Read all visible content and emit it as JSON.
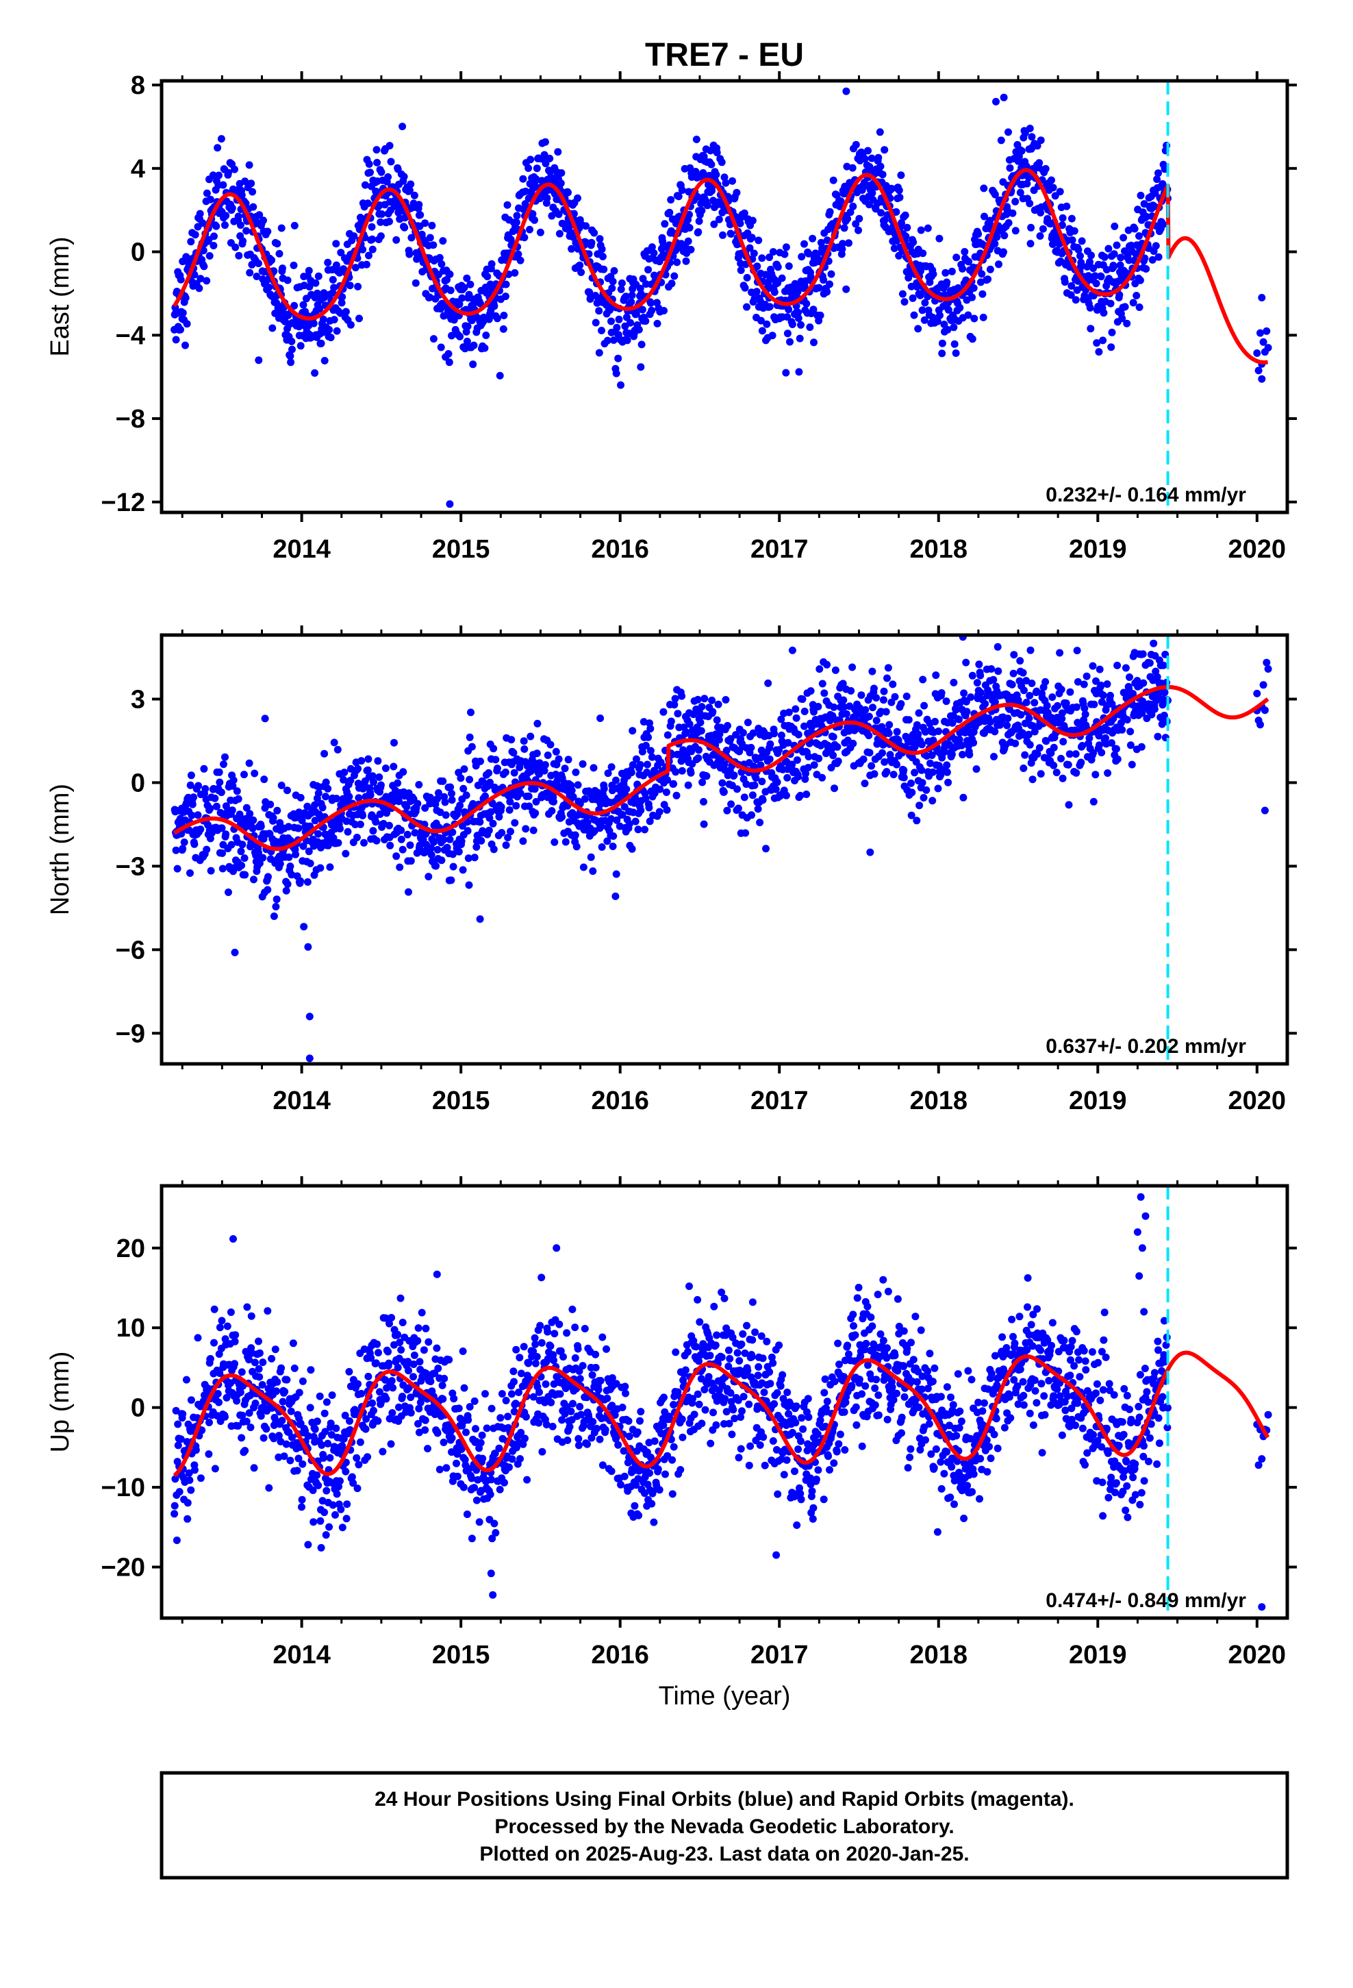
{
  "title": "TRE7 - EU",
  "xlabel": "Time (year)",
  "footer": {
    "line1": "24 Hour Positions Using Final Orbits (blue) and Rapid Orbits (magenta).",
    "line2": "Processed by the Nevada Geodetic Laboratory.",
    "line3": "Plotted on 2025-Aug-23. Last data on 2020-Jan-25."
  },
  "colors": {
    "data_points": "#0000ff",
    "model_fit": "#ff0000",
    "equipment_change": "#00e5ff",
    "frame": "#000000"
  },
  "chart_data": [
    {
      "type": "scatter",
      "panel": "east",
      "ylabel": "East (mm)",
      "xlim": [
        2013.12,
        2020.19
      ],
      "ylim": [
        -12.5,
        8.2
      ],
      "xticks": [
        2014,
        2015,
        2016,
        2017,
        2018,
        2019,
        2020
      ],
      "yticks": [
        8,
        4,
        0,
        -4,
        -8,
        -12
      ],
      "rate_text": "0.232+/- 0.164 mm/yr",
      "equipment_change_year": 2019.44,
      "data_start": 2013.2,
      "data_end": 2019.44,
      "tail_data_start": 2020.0,
      "tail_data_end": 2020.07,
      "fit": {
        "intercept": 0.0,
        "rate": 0.232,
        "reference_year": 2016.3,
        "annual_cos": -2.9,
        "annual_sin": -0.9,
        "semiannual_cos": 0.3,
        "semiannual_sin": 0.2,
        "step_at": 2019.44,
        "step": -3.5
      },
      "scatter_sigma": 1.1,
      "outliers": [
        {
          "x": 2014.93,
          "y": -12.1
        },
        {
          "x": 2017.42,
          "y": 7.7
        },
        {
          "x": 2018.36,
          "y": 7.2
        },
        {
          "x": 2018.41,
          "y": 7.4
        },
        {
          "x": 2013.73,
          "y": -5.2
        },
        {
          "x": 2020.03,
          "y": -6.1
        },
        {
          "x": 2020.03,
          "y": -2.2
        }
      ]
    },
    {
      "type": "scatter",
      "panel": "north",
      "ylabel": "North (mm)",
      "xlim": [
        2013.12,
        2020.19
      ],
      "ylim": [
        -10.1,
        5.3
      ],
      "xticks": [
        2014,
        2015,
        2016,
        2017,
        2018,
        2019,
        2020
      ],
      "yticks": [
        3,
        0,
        -3,
        -6,
        -9
      ],
      "rate_text": "0.637+/- 0.202 mm/yr",
      "equipment_change_year": 2019.44,
      "data_start": 2013.2,
      "data_end": 2019.44,
      "tail_data_start": 2020.0,
      "tail_data_end": 2020.07,
      "fit": {
        "intercept": -0.1,
        "rate": 0.637,
        "reference_year": 2016.3,
        "annual_cos": -0.5,
        "annual_sin": 0.45,
        "semiannual_cos": 0.05,
        "semiannual_sin": 0.05,
        "step_at": 2016.3,
        "step": 0.9
      },
      "scatter_sigma": 0.95,
      "outliers": [
        {
          "x": 2014.05,
          "y": -9.9
        },
        {
          "x": 2014.05,
          "y": -8.4
        },
        {
          "x": 2014.04,
          "y": -5.9
        },
        {
          "x": 2013.58,
          "y": -6.1
        },
        {
          "x": 2015.12,
          "y": -4.9
        },
        {
          "x": 2017.57,
          "y": -2.5
        },
        {
          "x": 2019.35,
          "y": 5.0
        },
        {
          "x": 2013.77,
          "y": 2.3
        },
        {
          "x": 2020.05,
          "y": -1.0
        },
        {
          "x": 2020.0,
          "y": 3.2
        }
      ]
    },
    {
      "type": "scatter",
      "panel": "up",
      "ylabel": "Up (mm)",
      "xlim": [
        2013.12,
        2020.19
      ],
      "ylim": [
        -26.4,
        27.8
      ],
      "xticks": [
        2014,
        2015,
        2016,
        2017,
        2018,
        2019,
        2020
      ],
      "yticks": [
        20,
        10,
        0,
        -10,
        -20
      ],
      "rate_text": "0.474+/- 0.849 mm/yr",
      "equipment_change_year": 2019.44,
      "data_start": 2013.2,
      "data_end": 2019.44,
      "tail_data_start": 2020.0,
      "tail_data_end": 2020.07,
      "fit": {
        "intercept": -0.3,
        "rate": 0.474,
        "reference_year": 2016.3,
        "annual_cos": -4.0,
        "annual_sin": -4.3,
        "semiannual_cos": 1.2,
        "semiannual_sin": -0.8,
        "step_at": 2019.44,
        "step": 0.0
      },
      "scatter_sigma": 4.0,
      "outliers": [
        {
          "x": 2015.2,
          "y": -23.5
        },
        {
          "x": 2015.19,
          "y": -20.8
        },
        {
          "x": 2014.04,
          "y": -17.2
        },
        {
          "x": 2019.27,
          "y": 26.4
        },
        {
          "x": 2019.3,
          "y": 24.0
        },
        {
          "x": 2019.25,
          "y": 22.0
        },
        {
          "x": 2019.28,
          "y": 20.0
        },
        {
          "x": 2019.26,
          "y": 16.5
        },
        {
          "x": 2019.29,
          "y": 12.0
        },
        {
          "x": 2015.6,
          "y": 20.0
        },
        {
          "x": 2020.03,
          "y": -25.0
        },
        {
          "x": 2014.85,
          "y": 16.7
        },
        {
          "x": 2016.98,
          "y": -18.5
        }
      ]
    }
  ]
}
